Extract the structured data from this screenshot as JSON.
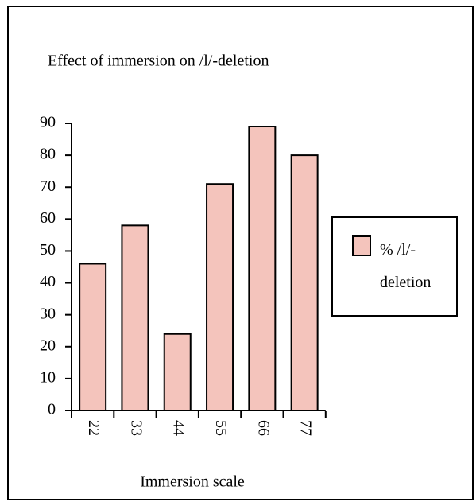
{
  "chart_data": {
    "type": "bar",
    "title": "Effect of immersion on /l/-deletion",
    "x_label": "Immersion scale",
    "categories": [
      "22",
      "33",
      "44",
      "55",
      "66",
      "77"
    ],
    "series": [
      {
        "name": "% /l/-deletion",
        "color": "#f4c4bc",
        "values": [
          46,
          58,
          24,
          71,
          89,
          80
        ]
      }
    ],
    "ylim": [
      0,
      90
    ],
    "yticks": [
      0,
      10,
      20,
      30,
      40,
      50,
      60,
      70,
      80,
      90
    ],
    "legend": "right"
  }
}
